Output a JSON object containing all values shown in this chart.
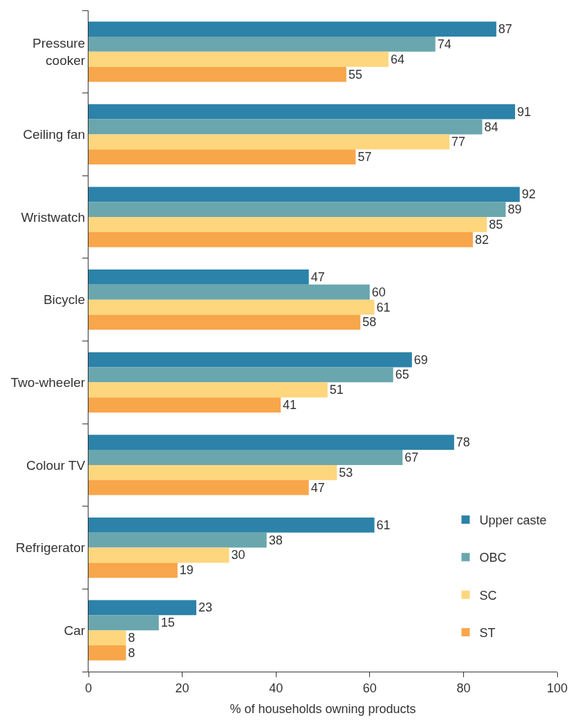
{
  "chart_data": {
    "type": "bar",
    "orientation": "horizontal",
    "xlabel": "% of households owning products",
    "categories": [
      "Pressure cooker",
      "Ceiling fan",
      "Wristwatch",
      "Bicycle",
      "Two-wheeler",
      "Colour TV",
      "Refrigerator",
      "Car"
    ],
    "series": [
      {
        "name": "Upper caste",
        "color": "#2c82a8",
        "values": [
          87,
          91,
          92,
          47,
          69,
          78,
          61,
          23
        ]
      },
      {
        "name": "OBC",
        "color": "#6aa6ae",
        "values": [
          74,
          84,
          89,
          60,
          65,
          67,
          38,
          15
        ]
      },
      {
        "name": "SC",
        "color": "#fdd67d",
        "values": [
          64,
          77,
          85,
          61,
          51,
          53,
          30,
          8
        ]
      },
      {
        "name": "ST",
        "color": "#f8a64a",
        "values": [
          55,
          57,
          82,
          58,
          41,
          47,
          19,
          8
        ]
      }
    ],
    "xlim": [
      0,
      100
    ],
    "xticks": [
      0,
      20,
      40,
      60,
      80,
      100
    ],
    "data_labels": true,
    "legend": "bottom right"
  }
}
